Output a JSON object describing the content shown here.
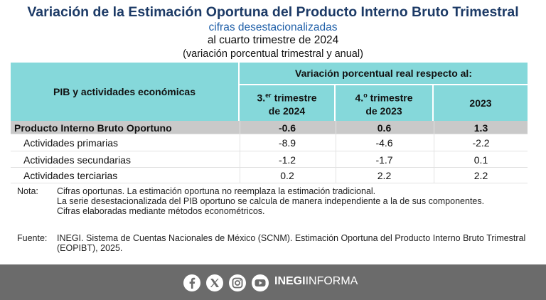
{
  "header": {
    "title": "Variación de la Estimación Oportuna del Producto Interno Bruto Trimestral",
    "subtitle": "cifras desestacionalizadas",
    "period": "al cuarto trimestre de 2024",
    "units": "(variación porcentual trimestral y anual)"
  },
  "table": {
    "row_header": "PIB y actividades económicas",
    "group_header": "Variación porcentual real respecto al:",
    "columns": [
      {
        "ordinal": "3.",
        "sup": "er",
        "line1": "trimestre",
        "line2": "de 2024"
      },
      {
        "ordinal": "4.",
        "sup": "o",
        "line1": "trimestre",
        "line2": "de 2023"
      },
      {
        "line1": "2023"
      }
    ],
    "rows": [
      {
        "label": "Producto Interno Bruto Oportuno",
        "values": [
          -0.6,
          0.6,
          1.3
        ]
      },
      {
        "label": "Actividades primarias",
        "values": [
          -8.9,
          -4.6,
          -2.2
        ]
      },
      {
        "label": "Actividades secundarias",
        "values": [
          -1.2,
          -1.7,
          0.1
        ]
      },
      {
        "label": "Actividades terciarias",
        "values": [
          0.2,
          2.2,
          2.2
        ]
      }
    ]
  },
  "notes": {
    "label": "Nota:",
    "items": [
      "Cifras oportunas. La estimación oportuna no reemplaza la estimación tradicional.",
      "La serie desestacionalizada del PIB oportuno se calcula de manera independiente a la de sus componentes.",
      "Cifras elaboradas mediante métodos econométricos."
    ]
  },
  "source": {
    "label": "Fuente:",
    "text": "INEGI. Sistema de Cuentas Nacionales de México (SCNM). Estimación Oportuna del Producto Interno Bruto Trimestral (EOPIBT), 2025."
  },
  "footer": {
    "brand_bold": "INEGI",
    "brand_regular": "INFORMA"
  }
}
